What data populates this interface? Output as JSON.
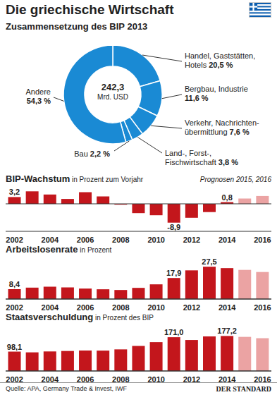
{
  "title": "Die griechische Wirtschaft",
  "source": "Quelle: APA, Germany Trade & Invest, IWF",
  "publisher": "DER STANDARD",
  "chart_data": [
    {
      "type": "pie",
      "title": "Zusammensetzung des BIP 2013",
      "annotations": [
        "242,3",
        "Mrd. USD"
      ],
      "categories": [
        "Handel, Gaststätten,\nHotels",
        "Bergbau, Industrie",
        "Verkehr, Nachrichten-\nübermittlung",
        "Land-, Forst-,\nFischwirtschaft",
        "Bau",
        "Andere"
      ],
      "values": [
        20.5,
        11.6,
        7.6,
        3.8,
        2.2,
        54.3
      ],
      "value_labels": [
        "20,5 %",
        "11,6 %",
        "7,6 %",
        "3,8 %",
        "2,2 %",
        "54,3 %"
      ],
      "color": "#1a8ad4"
    },
    {
      "type": "bar",
      "title": "BIP-Wachstum",
      "subtitle": "in Prozent zum Vorjahr",
      "annotations": [
        "Prognosen 2015, 2016"
      ],
      "categories": [
        "2002",
        null,
        "2004",
        null,
        "2006",
        null,
        "2008",
        null,
        "2010",
        null,
        "2012",
        null,
        "2014",
        null,
        "2016"
      ],
      "values": [
        3.2,
        5.9,
        4.4,
        2.3,
        5.5,
        3.5,
        -0.4,
        -4.4,
        -5.4,
        -8.9,
        -6.6,
        -3.9,
        0.8,
        2.5,
        3.7
      ],
      "value_labels": [
        "3,2",
        null,
        null,
        null,
        null,
        null,
        null,
        null,
        null,
        "-8,9",
        null,
        null,
        "0,8",
        null,
        null
      ],
      "colors": [
        "#c3161c",
        "#c3161c",
        "#c3161c",
        "#c3161c",
        "#c3161c",
        "#c3161c",
        "#c3161c",
        "#c3161c",
        "#c3161c",
        "#c3161c",
        "#c3161c",
        "#c3161c",
        "#c3161c",
        "#eba3a3",
        "#eba3a3"
      ],
      "ylim": [
        -13,
        7
      ],
      "tick_labels": "x"
    },
    {
      "type": "bar",
      "title": "Arbeitslosenrate",
      "subtitle": "in Prozent",
      "categories": [
        "2002",
        null,
        "2004",
        null,
        "2006",
        null,
        "2008",
        null,
        "2010",
        null,
        "2012",
        null,
        "2014",
        null,
        "2016"
      ],
      "values": [
        8.4,
        9.7,
        10.5,
        9.9,
        8.9,
        8.3,
        7.7,
        9.5,
        12.5,
        17.9,
        24.4,
        27.5,
        26.3,
        24.8,
        23.0
      ],
      "value_labels": [
        "8,4",
        null,
        null,
        null,
        null,
        null,
        null,
        null,
        null,
        "17,9",
        null,
        "27,5",
        null,
        null,
        null
      ],
      "colors": [
        "#c3161c",
        "#c3161c",
        "#c3161c",
        "#c3161c",
        "#c3161c",
        "#c3161c",
        "#c3161c",
        "#c3161c",
        "#c3161c",
        "#c3161c",
        "#c3161c",
        "#c3161c",
        "#c3161c",
        "#eba3a3",
        "#eba3a3"
      ],
      "ylim": [
        0,
        30
      ],
      "tick_labels": "x"
    },
    {
      "type": "bar",
      "title": "Staatsverschuldung",
      "subtitle": "in Prozent des BIP",
      "categories": [
        "2002",
        null,
        "2004",
        null,
        "2006",
        null,
        "2008",
        null,
        "2010",
        null,
        "2012",
        null,
        "2014",
        null,
        "2016"
      ],
      "values": [
        98.1,
        94.3,
        98.9,
        101.2,
        103.5,
        103.1,
        109.4,
        126.8,
        146.0,
        171.0,
        156.9,
        175.0,
        177.2,
        172.7,
        166.0
      ],
      "value_labels": [
        "98,1",
        null,
        null,
        null,
        null,
        null,
        null,
        null,
        null,
        "171,0",
        null,
        null,
        "177,2",
        null,
        null
      ],
      "colors": [
        "#c3161c",
        "#c3161c",
        "#c3161c",
        "#c3161c",
        "#c3161c",
        "#c3161c",
        "#c3161c",
        "#c3161c",
        "#c3161c",
        "#c3161c",
        "#c3161c",
        "#c3161c",
        "#c3161c",
        "#eba3a3",
        "#eba3a3"
      ],
      "ylim": [
        0,
        200
      ],
      "tick_labels": "x"
    }
  ]
}
